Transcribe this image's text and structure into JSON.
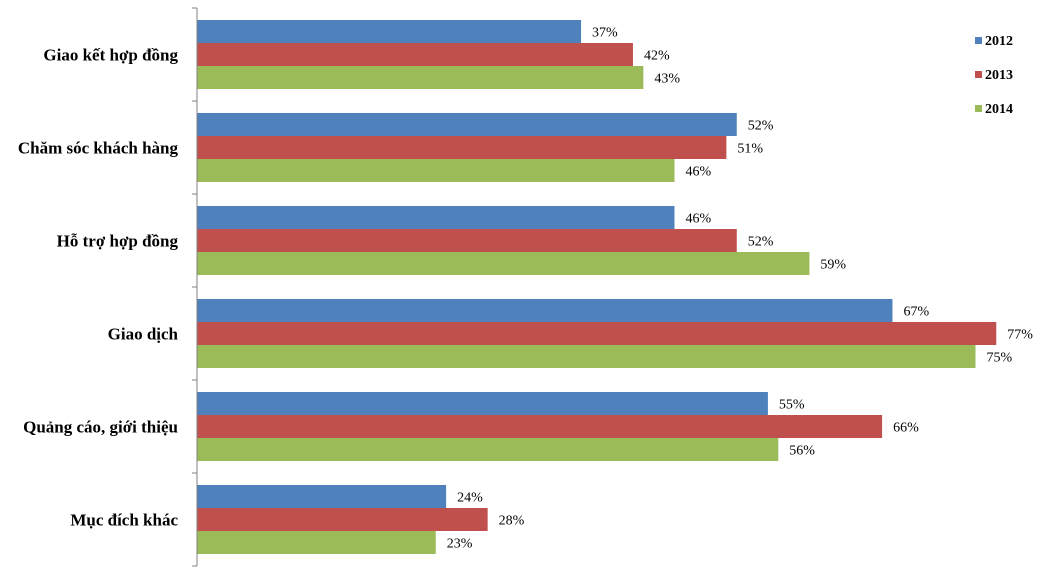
{
  "chart_data": {
    "type": "bar",
    "orientation": "horizontal",
    "categories": [
      "Giao kết hợp đồng",
      "Chăm sóc khách hàng",
      "Hỗ trợ hợp đồng",
      "Giao dịch",
      "Quảng cáo, giới thiệu",
      "Mục đích khác"
    ],
    "series": [
      {
        "name": "2012",
        "color": "#4F81BD",
        "values": [
          37,
          52,
          46,
          67,
          55,
          24
        ],
        "labels": [
          "37%",
          "52%",
          "46%",
          "67%",
          "55%",
          "24%"
        ]
      },
      {
        "name": "2013",
        "color": "#C0504D",
        "values": [
          42,
          51,
          52,
          77,
          66,
          28
        ],
        "labels": [
          "42%",
          "51%",
          "52%",
          "77%",
          "66%",
          "28%"
        ]
      },
      {
        "name": "2014",
        "color": "#9BBB59",
        "values": [
          43,
          46,
          59,
          75,
          56,
          23
        ],
        "labels": [
          "43%",
          "46%",
          "59%",
          "75%",
          "56%",
          "23%"
        ]
      }
    ],
    "xlim": [
      0,
      80
    ],
    "grid": false,
    "legend_position": "right"
  }
}
